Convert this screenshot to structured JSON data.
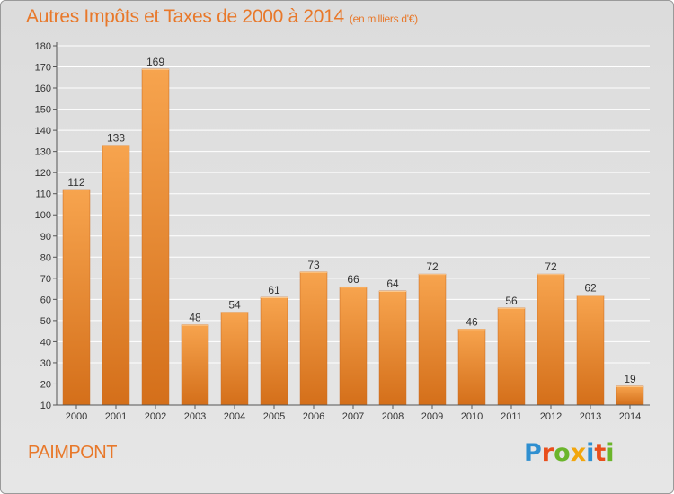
{
  "header": {
    "title": "Autres Impôts et Taxes de 2000 à 2014",
    "unit": "(en milliers d'€)"
  },
  "footer": {
    "city": "PAIMPONT",
    "logo_letters": [
      "P",
      "r",
      "o",
      "x",
      "i",
      "t",
      "i"
    ],
    "logo_colors": [
      "#2f8fd0",
      "#e94e1b",
      "#6bb52b",
      "#f2a60d",
      "#2f8fd0",
      "#e94e1b",
      "#6bb52b"
    ]
  },
  "colors": {
    "bar_top": "#f7a44e",
    "bar_bottom": "#d46f1a",
    "axis": "#555555",
    "grid": "#ffffff",
    "text": "#333333"
  },
  "chart_data": {
    "type": "bar",
    "title": "Autres Impôts et Taxes de 2000 à 2014",
    "xlabel": "",
    "ylabel": "",
    "categories": [
      "2000",
      "2001",
      "2002",
      "2003",
      "2004",
      "2005",
      "2006",
      "2007",
      "2008",
      "2009",
      "2010",
      "2011",
      "2012",
      "2013",
      "2014"
    ],
    "values": [
      112,
      133,
      169,
      48,
      54,
      61,
      73,
      66,
      64,
      72,
      46,
      56,
      72,
      62,
      19
    ],
    "ylim": [
      10,
      180
    ],
    "yticks": [
      10,
      20,
      30,
      40,
      50,
      60,
      70,
      80,
      90,
      100,
      110,
      120,
      130,
      140,
      150,
      160,
      170,
      180
    ],
    "grid": true,
    "legend": "none"
  }
}
